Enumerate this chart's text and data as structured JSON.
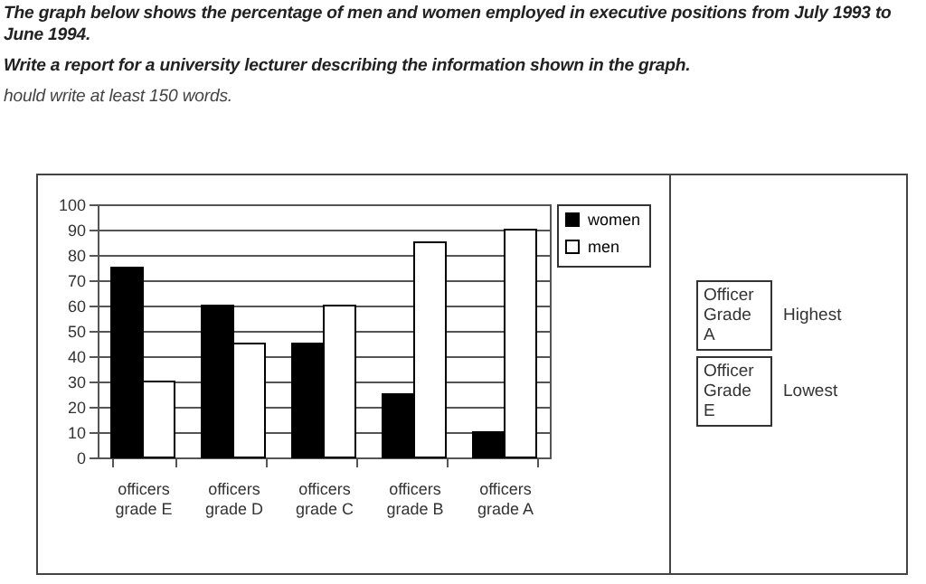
{
  "chart_data": {
    "type": "bar",
    "title": "The graph below shows the percentage of men and women employed in executive positions from July 1993 to June 1994.",
    "subtitle": "Write a report for a university lecturer describing the information shown in the graph.",
    "annotations": [
      "hould write at least 150 words.",
      "Officer Grade A",
      "Highest",
      "Officer Grade E",
      "Lowest"
    ],
    "categories": [
      "officers grade E",
      "officers grade D",
      "officers grade C",
      "officers grade B",
      "officers grade A"
    ],
    "series": [
      {
        "name": "women",
        "color": "#000000",
        "values": [
          75,
          60,
          45,
          25,
          10
        ]
      },
      {
        "name": "men",
        "color": "#ffffff",
        "values": [
          30,
          45,
          60,
          85,
          90
        ]
      }
    ],
    "ylim": [
      0,
      100
    ],
    "yticks": [
      0,
      10,
      20,
      30,
      40,
      50,
      60,
      70,
      80,
      90,
      100
    ],
    "grid": "y",
    "legend": "right"
  }
}
